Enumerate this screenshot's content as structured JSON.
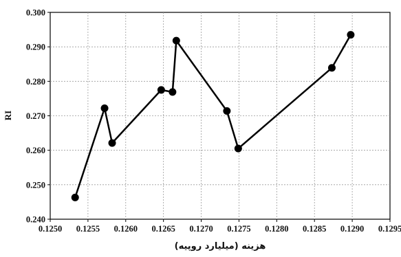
{
  "chart_data": {
    "type": "line",
    "title": "",
    "xlabel": "هزینه (میلیارد روپیه)",
    "ylabel": "RI",
    "xlim": [
      0.125,
      0.1295
    ],
    "ylim": [
      0.24,
      0.3
    ],
    "xticks": [
      "0.1250",
      "0.1255",
      "0.1260",
      "0.1265",
      "0.1270",
      "0.1275",
      "0.1280",
      "0.1285",
      "0.1290",
      "0.1295"
    ],
    "yticks": [
      "0.240",
      "0.250",
      "0.260",
      "0.270",
      "0.280",
      "0.290",
      "0.300"
    ],
    "grid": true,
    "series": [
      {
        "x": [
          0.12533,
          0.12572,
          0.12582,
          0.12647,
          0.12662,
          0.12667,
          0.12734,
          0.12749,
          0.12873,
          0.12898
        ],
        "y": [
          0.2463,
          0.2722,
          0.2621,
          0.2775,
          0.2769,
          0.2918,
          0.2714,
          0.2605,
          0.2839,
          0.2935
        ]
      }
    ]
  }
}
